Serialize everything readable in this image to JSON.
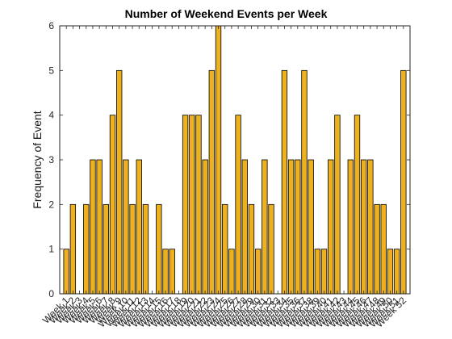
{
  "chart_data": {
    "type": "bar",
    "title": "Number of Weekend Events per Week",
    "xlabel": "",
    "ylabel": "Frequency of Event",
    "ylim": [
      0,
      6
    ],
    "yticks": [
      0,
      1,
      2,
      3,
      4,
      5,
      6
    ],
    "grid": false,
    "bar_color": "#EDB120",
    "categories": [
      "Week 1",
      "Week 2",
      "Week 3",
      "Week 4",
      "Week 5",
      "Week 6",
      "Week 7",
      "Week 8",
      "Week 9",
      "Week 10",
      "Week 11",
      "Week 12",
      "Week 13",
      "Week 14",
      "Week 15",
      "Week 16",
      "Week 17",
      "Week 18",
      "Week 19",
      "Week 20",
      "Week 21",
      "Week 22",
      "Week 23",
      "Week 24",
      "Week 25",
      "Week 26",
      "Week 27",
      "Week 28",
      "Week 29",
      "Week 30",
      "Week 31",
      "Week 32",
      "Week 33",
      "Week 34",
      "Week 35",
      "Week 36",
      "Week 37",
      "Week 38",
      "Week 39",
      "Week 40",
      "Week 41",
      "Week 42",
      "Week 43",
      "Week 44",
      "Week 45",
      "Week 46",
      "Week 47",
      "Week 48",
      "Week 49",
      "Week 50",
      "Week 51",
      "Week 52"
    ],
    "values": [
      1,
      2,
      0,
      2,
      3,
      3,
      2,
      4,
      5,
      3,
      2,
      3,
      2,
      0,
      2,
      1,
      1,
      0,
      4,
      4,
      4,
      3,
      5,
      6,
      2,
      1,
      4,
      3,
      2,
      1,
      3,
      2,
      0,
      5,
      3,
      3,
      5,
      3,
      1,
      1,
      3,
      4,
      0,
      3,
      4,
      3,
      3,
      2,
      2,
      1,
      1,
      5
    ]
  }
}
